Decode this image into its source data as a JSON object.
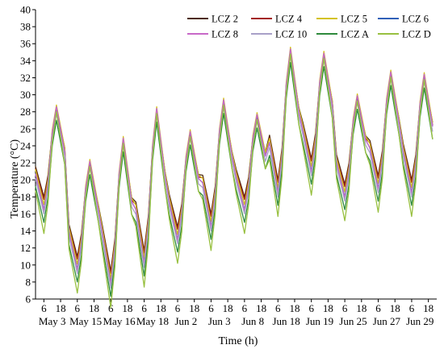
{
  "chart_data": {
    "type": "line",
    "xlabel": "Time (h)",
    "ylabel": "Temperature (°C)",
    "ylim": [
      6,
      40
    ],
    "yticks": [
      6,
      8,
      10,
      12,
      14,
      16,
      18,
      20,
      22,
      24,
      26,
      28,
      30,
      32,
      34,
      36,
      38,
      40
    ],
    "grid": false,
    "legend_position": "top-right",
    "legend_columns": 4,
    "days": [
      "May 3",
      "May 15",
      "May 16",
      "May 18",
      "Jun 2",
      "Jun 3",
      "Jun 8",
      "Jun 18",
      "Jun 19",
      "Jun 25",
      "Jun 27",
      "Jun 29"
    ],
    "hour_ticks": [
      "6",
      "18"
    ],
    "hours_per_day": 24,
    "sample_hours": [
      0,
      3,
      6,
      9,
      12,
      15,
      18,
      21
    ],
    "day_min_temp": [
      15.5,
      8.5,
      6.8,
      9.2,
      12.0,
      13.5,
      15.5,
      17.5,
      20.0,
      17.0,
      18.0,
      17.5
    ],
    "day_max_temp": [
      28.2,
      21.8,
      24.5,
      28.0,
      25.3,
      29.0,
      27.3,
      35.0,
      34.5,
      29.5,
      32.3,
      32.0
    ],
    "series": [
      {
        "name": "LCZ 2",
        "color": "#4d2b0d",
        "min_offset": 2.5,
        "max_offset": 0.0
      },
      {
        "name": "LCZ 4",
        "color": "#a31f1f",
        "min_offset": 2.2,
        "max_offset": -0.3
      },
      {
        "name": "LCZ 5",
        "color": "#d4c21c",
        "min_offset": 1.6,
        "max_offset": 0.6
      },
      {
        "name": "LCZ 6",
        "color": "#3060b8",
        "min_offset": 1.0,
        "max_offset": 0.3
      },
      {
        "name": "LCZ 8",
        "color": "#c868c8",
        "min_offset": 0.9,
        "max_offset": 0.4
      },
      {
        "name": "LCZ 10",
        "color": "#a8a0c8",
        "min_offset": 0.5,
        "max_offset": -0.4
      },
      {
        "name": "LCZ A",
        "color": "#2e8a3c",
        "min_offset": -0.5,
        "max_offset": -1.2
      },
      {
        "name": "LCZ D",
        "color": "#98c040",
        "min_offset": -1.8,
        "max_offset": -0.2
      }
    ]
  }
}
